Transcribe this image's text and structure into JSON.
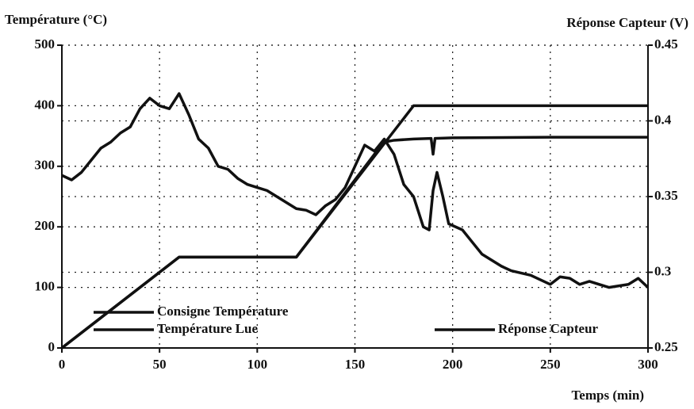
{
  "chart_data": {
    "type": "line",
    "title": "Température (°C)",
    "y2_title": "Réponse Capteur (V)",
    "xlabel": "Temps (min)",
    "xlim": [
      0,
      300
    ],
    "xticks": [
      0,
      50,
      100,
      150,
      200,
      250,
      300
    ],
    "ylim": [
      0,
      500
    ],
    "yticks": [
      0,
      100,
      200,
      300,
      400,
      500
    ],
    "y2lim": [
      0.25,
      0.45
    ],
    "y2ticks": [
      0.25,
      0.3,
      0.35,
      0.4,
      0.45
    ],
    "grid": true,
    "series": [
      {
        "name": "Consigne Température",
        "color": "#111111",
        "x": [
          0,
          60,
          120,
          180,
          300
        ],
        "values": [
          0,
          150,
          150,
          400,
          400
        ]
      },
      {
        "name": "Température Lue",
        "color": "#111111",
        "x": [
          0,
          60,
          120,
          160,
          165,
          170,
          180,
          189,
          190,
          191,
          200,
          250,
          300
        ],
        "values": [
          0,
          150,
          150,
          320,
          340,
          343,
          345,
          346,
          320,
          346,
          347,
          348,
          348
        ]
      },
      {
        "name": "Réponse Capteur",
        "color": "#111111",
        "axis": "y2",
        "x": [
          0,
          5,
          10,
          15,
          20,
          25,
          30,
          35,
          40,
          45,
          50,
          55,
          60,
          65,
          70,
          75,
          80,
          85,
          90,
          95,
          100,
          105,
          110,
          115,
          120,
          125,
          130,
          135,
          140,
          145,
          150,
          155,
          160,
          165,
          170,
          175,
          180,
          185,
          188,
          190,
          192,
          195,
          198,
          205,
          210,
          215,
          220,
          225,
          230,
          240,
          250,
          255,
          260,
          265,
          270,
          280,
          290,
          295,
          300
        ],
        "values": [
          0.364,
          0.361,
          0.366,
          0.374,
          0.382,
          0.386,
          0.392,
          0.396,
          0.408,
          0.415,
          0.41,
          0.408,
          0.418,
          0.404,
          0.388,
          0.382,
          0.37,
          0.368,
          0.362,
          0.358,
          0.356,
          0.354,
          0.35,
          0.346,
          0.342,
          0.341,
          0.338,
          0.344,
          0.348,
          0.356,
          0.37,
          0.384,
          0.38,
          0.388,
          0.378,
          0.358,
          0.35,
          0.33,
          0.328,
          0.354,
          0.366,
          0.35,
          0.332,
          0.328,
          0.32,
          0.312,
          0.308,
          0.304,
          0.301,
          0.298,
          0.292,
          0.297,
          0.296,
          0.292,
          0.294,
          0.29,
          0.292,
          0.296,
          0.29
        ]
      }
    ]
  }
}
